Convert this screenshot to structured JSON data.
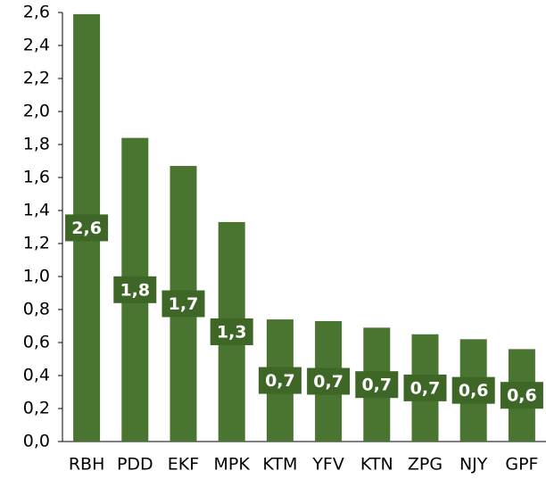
{
  "chart_data": {
    "type": "bar",
    "categories": [
      "RBH",
      "PDD",
      "EKF",
      "MPK",
      "KTM",
      "YFV",
      "KTN",
      "ZPG",
      "NJY",
      "GPF"
    ],
    "values": [
      2.59,
      1.84,
      1.67,
      1.33,
      0.74,
      0.73,
      0.69,
      0.65,
      0.62,
      0.56
    ],
    "value_labels": [
      "2,6",
      "1,8",
      "1,7",
      "1,3",
      "0,7",
      "0,7",
      "0,7",
      "0,7",
      "0,6",
      "0,6"
    ],
    "color": "#4a7530",
    "ylim": [
      0,
      2.6
    ],
    "yticks": [
      {
        "value": 0,
        "label": "0,0"
      },
      {
        "value": 0.2,
        "label": "0,2"
      },
      {
        "value": 0.4,
        "label": "0,4"
      },
      {
        "value": 0.6,
        "label": "0,6"
      },
      {
        "value": 0.8,
        "label": "0,8"
      },
      {
        "value": 1.0,
        "label": "1,0"
      },
      {
        "value": 1.2,
        "label": "1,2"
      },
      {
        "value": 1.4,
        "label": "1,4"
      },
      {
        "value": 1.6,
        "label": "1,6"
      },
      {
        "value": 1.8,
        "label": "1,8"
      },
      {
        "value": 2.0,
        "label": "2,0"
      },
      {
        "value": 2.2,
        "label": "2,2"
      },
      {
        "value": 2.4,
        "label": "2,4"
      },
      {
        "value": 2.6,
        "label": "2,6"
      }
    ],
    "grid": false
  }
}
